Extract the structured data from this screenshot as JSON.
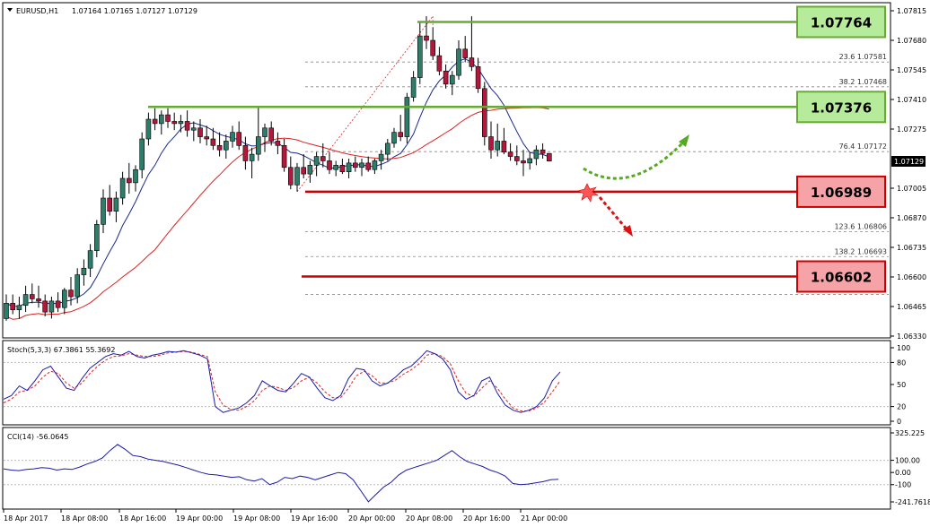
{
  "header": {
    "dropdown_icon": "triangle-down-icon",
    "symbol": "EURUSD,H1",
    "ohlc": "1.07164 1.07165 1.07127 1.07129"
  },
  "price_axis": {
    "ticks": [
      "1.07815",
      "1.07680",
      "1.07545",
      "1.07410",
      "1.07275",
      "1.07005",
      "1.06870",
      "1.06735",
      "1.06600",
      "1.06465",
      "1.06330"
    ],
    "current": "1.07129"
  },
  "time_axis": {
    "ticks": [
      "18 Apr 2017",
      "18 Apr 08:00",
      "18 Apr 16:00",
      "19 Apr 00:00",
      "19 Apr 08:00",
      "19 Apr 16:00",
      "20 Apr 00:00",
      "20 Apr 08:00",
      "20 Apr 16:00",
      "21 Apr 00:00"
    ]
  },
  "levels": [
    {
      "label": "1.07764",
      "kind": "resistance",
      "color": "#66aa33",
      "fill": "#b6eb9b",
      "price": 1.07764
    },
    {
      "label": "1.07376",
      "kind": "resistance",
      "color": "#66aa33",
      "fill": "#b6eb9b",
      "price": 1.07376
    },
    {
      "label": "1.06989",
      "kind": "support",
      "color": "#cc0000",
      "fill": "#f5a3a7",
      "price": 1.06989
    },
    {
      "label": "1.06602",
      "kind": "support",
      "color": "#cc0000",
      "fill": "#f5a3a7",
      "price": 1.06602
    }
  ],
  "fib_levels": [
    {
      "label": "23.6  1.07581",
      "price": 1.07581
    },
    {
      "label": "38.2  1.07468",
      "price": 1.07468
    },
    {
      "label": "76.4  1.07172",
      "price": 1.07172
    },
    {
      "label": "123.6  1.06806",
      "price": 1.06806
    },
    {
      "label": "138.2  1.06693",
      "price": 1.06693
    },
    {
      "label": "",
      "price": 1.0652
    }
  ],
  "stoch_panel": {
    "title": "Stoch(5,3,3) 67.3861 55.3692",
    "ticks": [
      "100",
      "80",
      "50",
      "20",
      "0"
    ],
    "main_color": "#1a1aaa",
    "signal_color": "#dd2222"
  },
  "cci_panel": {
    "title": "CCI(14) -56.0645",
    "ticks": [
      "325.225",
      "100.00",
      "0.00",
      "-100",
      "-241.7618"
    ],
    "line_color": "#1a1aaa"
  },
  "colors": {
    "bull": "#2e7d6b",
    "bear": "#b2183b",
    "ma_fast": "#1a2a8a",
    "ma_slow": "#dd2222",
    "scenario_up": "#55aa22",
    "scenario_down": "#dd1111"
  },
  "chart_data": {
    "type": "candlestick",
    "symbol": "EURUSD",
    "timeframe": "H1",
    "ylim": [
      1.0633,
      1.0782
    ],
    "candles": [
      {
        "o": 1.0641,
        "h": 1.0652,
        "l": 1.064,
        "c": 1.0648
      },
      {
        "o": 1.0648,
        "h": 1.0652,
        "l": 1.0643,
        "c": 1.0645
      },
      {
        "o": 1.0645,
        "h": 1.0651,
        "l": 1.0641,
        "c": 1.0647
      },
      {
        "o": 1.0647,
        "h": 1.0656,
        "l": 1.0644,
        "c": 1.0652
      },
      {
        "o": 1.0652,
        "h": 1.0657,
        "l": 1.0648,
        "c": 1.065
      },
      {
        "o": 1.065,
        "h": 1.0656,
        "l": 1.0646,
        "c": 1.0649
      },
      {
        "o": 1.0649,
        "h": 1.0652,
        "l": 1.0642,
        "c": 1.0644
      },
      {
        "o": 1.0644,
        "h": 1.0651,
        "l": 1.0641,
        "c": 1.0649
      },
      {
        "o": 1.0649,
        "h": 1.0653,
        "l": 1.0644,
        "c": 1.0646
      },
      {
        "o": 1.0646,
        "h": 1.0655,
        "l": 1.0643,
        "c": 1.0654
      },
      {
        "o": 1.0654,
        "h": 1.066,
        "l": 1.0647,
        "c": 1.0651
      },
      {
        "o": 1.0651,
        "h": 1.0664,
        "l": 1.0648,
        "c": 1.0661
      },
      {
        "o": 1.0661,
        "h": 1.0668,
        "l": 1.0656,
        "c": 1.0664
      },
      {
        "o": 1.0664,
        "h": 1.0675,
        "l": 1.066,
        "c": 1.0672
      },
      {
        "o": 1.0672,
        "h": 1.0686,
        "l": 1.0669,
        "c": 1.0684
      },
      {
        "o": 1.0684,
        "h": 1.07,
        "l": 1.068,
        "c": 1.0696
      },
      {
        "o": 1.0696,
        "h": 1.0702,
        "l": 1.0688,
        "c": 1.069
      },
      {
        "o": 1.069,
        "h": 1.0699,
        "l": 1.0685,
        "c": 1.0696
      },
      {
        "o": 1.0696,
        "h": 1.0708,
        "l": 1.0693,
        "c": 1.0705
      },
      {
        "o": 1.0705,
        "h": 1.0712,
        "l": 1.0698,
        "c": 1.0703
      },
      {
        "o": 1.0703,
        "h": 1.0711,
        "l": 1.0699,
        "c": 1.0709
      },
      {
        "o": 1.0709,
        "h": 1.0726,
        "l": 1.0705,
        "c": 1.0723
      },
      {
        "o": 1.0723,
        "h": 1.0735,
        "l": 1.072,
        "c": 1.0732
      },
      {
        "o": 1.0732,
        "h": 1.0737,
        "l": 1.0727,
        "c": 1.073
      },
      {
        "o": 1.073,
        "h": 1.0736,
        "l": 1.0725,
        "c": 1.0734
      },
      {
        "o": 1.0734,
        "h": 1.0737,
        "l": 1.0728,
        "c": 1.0731
      },
      {
        "o": 1.0731,
        "h": 1.0735,
        "l": 1.0727,
        "c": 1.073
      },
      {
        "o": 1.073,
        "h": 1.0734,
        "l": 1.0726,
        "c": 1.0731
      },
      {
        "o": 1.0731,
        "h": 1.0736,
        "l": 1.0724,
        "c": 1.0727
      },
      {
        "o": 1.0727,
        "h": 1.0731,
        "l": 1.0722,
        "c": 1.0728
      },
      {
        "o": 1.0728,
        "h": 1.0732,
        "l": 1.0721,
        "c": 1.0724
      },
      {
        "o": 1.0724,
        "h": 1.0729,
        "l": 1.072,
        "c": 1.0723
      },
      {
        "o": 1.0723,
        "h": 1.0728,
        "l": 1.0718,
        "c": 1.072
      },
      {
        "o": 1.072,
        "h": 1.0726,
        "l": 1.0715,
        "c": 1.0718
      },
      {
        "o": 1.0718,
        "h": 1.0725,
        "l": 1.0714,
        "c": 1.0722
      },
      {
        "o": 1.0722,
        "h": 1.0729,
        "l": 1.0719,
        "c": 1.0726
      },
      {
        "o": 1.0726,
        "h": 1.0731,
        "l": 1.0718,
        "c": 1.072
      },
      {
        "o": 1.072,
        "h": 1.0724,
        "l": 1.0709,
        "c": 1.0713
      },
      {
        "o": 1.0713,
        "h": 1.0719,
        "l": 1.0705,
        "c": 1.0716
      },
      {
        "o": 1.0716,
        "h": 1.0738,
        "l": 1.0713,
        "c": 1.0724
      },
      {
        "o": 1.0724,
        "h": 1.073,
        "l": 1.0717,
        "c": 1.0728
      },
      {
        "o": 1.0728,
        "h": 1.0731,
        "l": 1.072,
        "c": 1.0722
      },
      {
        "o": 1.0722,
        "h": 1.0726,
        "l": 1.0716,
        "c": 1.072
      },
      {
        "o": 1.072,
        "h": 1.0723,
        "l": 1.0708,
        "c": 1.071
      },
      {
        "o": 1.071,
        "h": 1.0715,
        "l": 1.07,
        "c": 1.0702
      },
      {
        "o": 1.0702,
        "h": 1.0712,
        "l": 1.0699,
        "c": 1.071
      },
      {
        "o": 1.071,
        "h": 1.0716,
        "l": 1.0705,
        "c": 1.0707
      },
      {
        "o": 1.0707,
        "h": 1.0713,
        "l": 1.0703,
        "c": 1.0711
      },
      {
        "o": 1.0711,
        "h": 1.0717,
        "l": 1.0706,
        "c": 1.0715
      },
      {
        "o": 1.0715,
        "h": 1.0721,
        "l": 1.071,
        "c": 1.0713
      },
      {
        "o": 1.0713,
        "h": 1.0717,
        "l": 1.0707,
        "c": 1.0709
      },
      {
        "o": 1.0709,
        "h": 1.0713,
        "l": 1.0706,
        "c": 1.0711
      },
      {
        "o": 1.0711,
        "h": 1.0714,
        "l": 1.0707,
        "c": 1.0708
      },
      {
        "o": 1.0708,
        "h": 1.0714,
        "l": 1.0705,
        "c": 1.0712
      },
      {
        "o": 1.0712,
        "h": 1.0715,
        "l": 1.0708,
        "c": 1.071
      },
      {
        "o": 1.071,
        "h": 1.0714,
        "l": 1.0706,
        "c": 1.0712
      },
      {
        "o": 1.0712,
        "h": 1.0715,
        "l": 1.0708,
        "c": 1.0709
      },
      {
        "o": 1.0709,
        "h": 1.0714,
        "l": 1.0707,
        "c": 1.0713
      },
      {
        "o": 1.0713,
        "h": 1.0718,
        "l": 1.0709,
        "c": 1.0716
      },
      {
        "o": 1.0716,
        "h": 1.0723,
        "l": 1.0713,
        "c": 1.0721
      },
      {
        "o": 1.0721,
        "h": 1.0728,
        "l": 1.0719,
        "c": 1.0726
      },
      {
        "o": 1.0726,
        "h": 1.0734,
        "l": 1.0722,
        "c": 1.0724
      },
      {
        "o": 1.0724,
        "h": 1.0744,
        "l": 1.0721,
        "c": 1.0742
      },
      {
        "o": 1.0742,
        "h": 1.0754,
        "l": 1.074,
        "c": 1.0751
      },
      {
        "o": 1.0751,
        "h": 1.0776,
        "l": 1.0748,
        "c": 1.077
      },
      {
        "o": 1.077,
        "h": 1.0779,
        "l": 1.0764,
        "c": 1.0768
      },
      {
        "o": 1.0768,
        "h": 1.0774,
        "l": 1.0759,
        "c": 1.0761
      },
      {
        "o": 1.0761,
        "h": 1.0765,
        "l": 1.0752,
        "c": 1.0754
      },
      {
        "o": 1.0754,
        "h": 1.0757,
        "l": 1.0746,
        "c": 1.0748
      },
      {
        "o": 1.0748,
        "h": 1.0754,
        "l": 1.0743,
        "c": 1.0752
      },
      {
        "o": 1.0752,
        "h": 1.0768,
        "l": 1.075,
        "c": 1.0764
      },
      {
        "o": 1.0764,
        "h": 1.077,
        "l": 1.0758,
        "c": 1.076
      },
      {
        "o": 1.076,
        "h": 1.0779,
        "l": 1.0754,
        "c": 1.0756
      },
      {
        "o": 1.0756,
        "h": 1.076,
        "l": 1.0744,
        "c": 1.0746
      },
      {
        "o": 1.0746,
        "h": 1.0749,
        "l": 1.072,
        "c": 1.0724
      },
      {
        "o": 1.0724,
        "h": 1.0731,
        "l": 1.0714,
        "c": 1.0718
      },
      {
        "o": 1.0718,
        "h": 1.073,
        "l": 1.0715,
        "c": 1.0722
      },
      {
        "o": 1.0722,
        "h": 1.0728,
        "l": 1.0716,
        "c": 1.0717
      },
      {
        "o": 1.0717,
        "h": 1.0721,
        "l": 1.0713,
        "c": 1.0715
      },
      {
        "o": 1.0715,
        "h": 1.072,
        "l": 1.0711,
        "c": 1.0713
      },
      {
        "o": 1.0713,
        "h": 1.0718,
        "l": 1.0706,
        "c": 1.0712
      },
      {
        "o": 1.0712,
        "h": 1.0717,
        "l": 1.0709,
        "c": 1.0714
      },
      {
        "o": 1.0714,
        "h": 1.072,
        "l": 1.0711,
        "c": 1.0718
      },
      {
        "o": 1.0718,
        "h": 1.0721,
        "l": 1.0714,
        "c": 1.07164
      },
      {
        "o": 1.07164,
        "h": 1.07165,
        "l": 1.07127,
        "c": 1.07129
      }
    ],
    "moving_averages": [
      {
        "name": "fast",
        "color": "#1a2a8a",
        "values": []
      },
      {
        "name": "slow",
        "color": "#dd2222",
        "values": []
      }
    ],
    "stochastic": {
      "k": [
        30,
        35,
        48,
        42,
        55,
        70,
        75,
        60,
        45,
        42,
        58,
        72,
        80,
        88,
        92,
        90,
        95,
        88,
        86,
        90,
        92,
        95,
        94,
        96,
        93,
        90,
        85,
        20,
        12,
        15,
        18,
        25,
        35,
        55,
        48,
        42,
        40,
        52,
        65,
        60,
        45,
        32,
        28,
        35,
        58,
        72,
        70,
        55,
        48,
        52,
        60,
        70,
        75,
        85,
        96,
        92,
        85,
        70,
        40,
        30,
        35,
        55,
        60,
        38,
        22,
        15,
        12,
        15,
        20,
        32,
        55,
        67
      ],
      "d": [
        25,
        30,
        40,
        42,
        48,
        60,
        68,
        65,
        52,
        45,
        52,
        65,
        75,
        83,
        88,
        89,
        92,
        90,
        88,
        88,
        90,
        93,
        94,
        95,
        94,
        91,
        88,
        40,
        22,
        16,
        15,
        20,
        28,
        42,
        48,
        46,
        42,
        46,
        55,
        60,
        52,
        40,
        32,
        32,
        45,
        62,
        68,
        62,
        52,
        52,
        56,
        64,
        70,
        78,
        90,
        92,
        88,
        78,
        55,
        38,
        34,
        45,
        55,
        45,
        30,
        18,
        14,
        14,
        18,
        26,
        40,
        55
      ]
    },
    "cci": {
      "values": [
        30,
        20,
        15,
        25,
        30,
        40,
        35,
        20,
        30,
        25,
        45,
        70,
        90,
        120,
        180,
        230,
        190,
        140,
        130,
        110,
        100,
        90,
        75,
        60,
        40,
        20,
        0,
        -15,
        -20,
        -30,
        -40,
        -35,
        -60,
        -70,
        -50,
        -100,
        -80,
        -40,
        -50,
        -30,
        -40,
        -60,
        -40,
        -20,
        0,
        -10,
        -60,
        -150,
        -240,
        -180,
        -120,
        -80,
        -20,
        20,
        40,
        60,
        80,
        100,
        140,
        180,
        130,
        90,
        70,
        50,
        20,
        0,
        -30,
        -90,
        -100,
        -95,
        -85,
        -75,
        -60,
        -56
      ]
    }
  }
}
